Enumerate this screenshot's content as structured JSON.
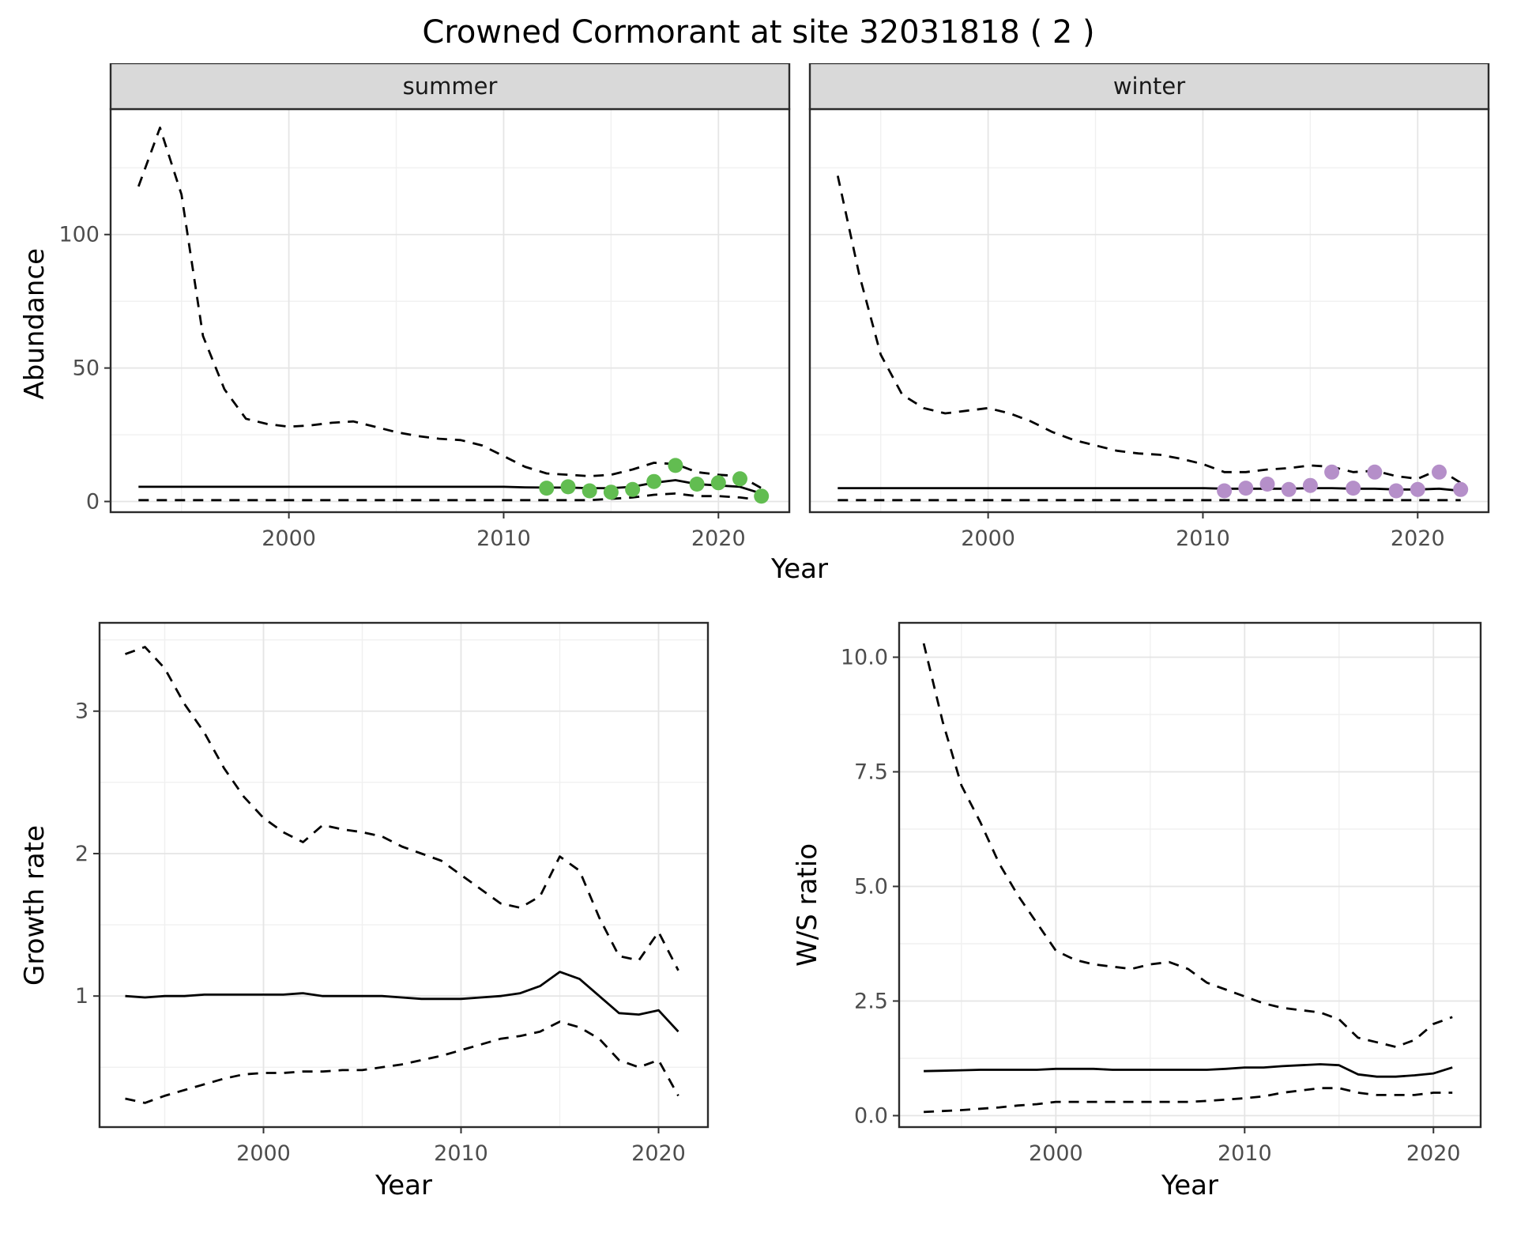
{
  "title": "Crowned Cormorant at site 32031818 ( 2 )",
  "theme": {
    "panel_bg": "#ffffff",
    "strip_bg": "#d9d9d9",
    "panel_border": "#2b2b2b",
    "grid_major": "#e5e5e5",
    "grid_minor": "#f0f0f0",
    "line_color": "#000000",
    "tick_color": "#333333",
    "axis_text": "#4d4d4d",
    "summer_point_color": "#62bd51",
    "winter_point_color": "#b58fc9"
  },
  "chart_data": [
    {
      "id": "abundance",
      "type": "line",
      "title": "Abundance by season (faceted)",
      "xlabel": "Year",
      "ylabel": "Abundance",
      "xlim": [
        1991.7,
        2023.3
      ],
      "ylim": [
        -4,
        147
      ],
      "xticks": [
        2000,
        2010,
        2020
      ],
      "xtick_labels": [
        "2000",
        "2010",
        "2020"
      ],
      "yticks": [
        0,
        50,
        100
      ],
      "ytick_labels": [
        "0",
        "50",
        "100"
      ],
      "xminor": [
        1995,
        2005,
        2015
      ],
      "yminor": [
        25,
        75,
        125
      ],
      "grid": "on",
      "legend": "none",
      "facets": [
        {
          "label": "summer",
          "x": [
            1993,
            1994,
            1995,
            1996,
            1997,
            1998,
            1999,
            2000,
            2001,
            2002,
            2003,
            2004,
            2005,
            2006,
            2007,
            2008,
            2009,
            2010,
            2011,
            2012,
            2013,
            2014,
            2015,
            2016,
            2017,
            2018,
            2019,
            2020,
            2021,
            2022
          ],
          "series": [
            {
              "name": "upper_ci",
              "style": "dashed",
              "values": [
                118,
                140,
                115,
                62,
                42,
                31,
                29,
                28,
                28.5,
                29.5,
                30,
                28,
                26,
                24.5,
                23.5,
                23,
                21,
                17,
                13,
                10.5,
                10,
                9.5,
                10,
                12,
                14.5,
                14,
                11,
                10,
                9.5,
                5
              ]
            },
            {
              "name": "median",
              "style": "solid",
              "values": [
                5.5,
                5.5,
                5.5,
                5.5,
                5.5,
                5.5,
                5.5,
                5.5,
                5.5,
                5.5,
                5.5,
                5.5,
                5.5,
                5.5,
                5.5,
                5.5,
                5.5,
                5.5,
                5.3,
                5.2,
                5.2,
                5,
                5,
                5.5,
                7,
                8,
                6.5,
                6,
                5.5,
                3
              ]
            },
            {
              "name": "lower_ci",
              "style": "dashed",
              "values": [
                0.5,
                0.5,
                0.5,
                0.5,
                0.5,
                0.5,
                0.5,
                0.5,
                0.5,
                0.5,
                0.5,
                0.5,
                0.5,
                0.5,
                0.5,
                0.5,
                0.5,
                0.5,
                0.5,
                0.5,
                0.5,
                0.5,
                1,
                1.5,
                2.5,
                3,
                2,
                2,
                1.5,
                0.5
              ]
            }
          ],
          "points": {
            "name": "observed_counts",
            "color": "#62bd51",
            "x": [
              2012,
              2013,
              2014,
              2015,
              2016,
              2017,
              2018,
              2019,
              2020,
              2021,
              2022
            ],
            "y": [
              5,
              5.5,
              4,
              3.5,
              4.5,
              7.5,
              13.5,
              6.5,
              7,
              8.5,
              2
            ]
          }
        },
        {
          "label": "winter",
          "x": [
            1993,
            1994,
            1995,
            1996,
            1997,
            1998,
            1999,
            2000,
            2001,
            2002,
            2003,
            2004,
            2005,
            2006,
            2007,
            2008,
            2009,
            2010,
            2011,
            2012,
            2013,
            2014,
            2015,
            2016,
            2017,
            2018,
            2019,
            2020,
            2021,
            2022
          ],
          "series": [
            {
              "name": "upper_ci",
              "style": "dashed",
              "values": [
                122,
                85,
                55,
                40,
                35,
                33,
                34,
                35,
                33,
                30,
                26,
                23,
                21,
                19,
                18,
                17.5,
                16,
                14,
                11,
                11,
                12,
                12.5,
                13.5,
                13,
                11,
                11.5,
                9.5,
                8.5,
                12,
                7
              ]
            },
            {
              "name": "median",
              "style": "solid",
              "values": [
                5,
                5,
                5,
                5,
                5,
                5,
                5,
                5,
                5,
                5,
                5,
                5,
                5,
                5,
                5,
                5,
                5,
                5,
                4.8,
                4.8,
                4.8,
                4.8,
                5,
                5,
                4.8,
                4.8,
                4.5,
                4.5,
                4.8,
                4
              ]
            },
            {
              "name": "lower_ci",
              "style": "dashed",
              "values": [
                0.5,
                0.5,
                0.5,
                0.5,
                0.5,
                0.5,
                0.5,
                0.5,
                0.5,
                0.5,
                0.5,
                0.5,
                0.5,
                0.5,
                0.5,
                0.5,
                0.5,
                0.5,
                0.5,
                0.5,
                0.5,
                0.5,
                0.5,
                0.5,
                0.5,
                0.5,
                0.5,
                0.5,
                0.5,
                0.5
              ]
            }
          ],
          "points": {
            "name": "observed_counts",
            "color": "#b58fc9",
            "x": [
              2011,
              2012,
              2013,
              2014,
              2015,
              2016,
              2017,
              2018,
              2019,
              2020,
              2021,
              2022
            ],
            "y": [
              4,
              5,
              6.5,
              4.5,
              6,
              11,
              5,
              11,
              4,
              4.5,
              11,
              4.5
            ]
          }
        }
      ]
    },
    {
      "id": "growth_rate",
      "type": "line",
      "title": "Growth rate",
      "xlabel": "Year",
      "ylabel": "Growth rate",
      "xlim": [
        1991.7,
        2022.5
      ],
      "ylim": [
        0.08,
        3.62
      ],
      "xticks": [
        2000,
        2010,
        2020
      ],
      "xtick_labels": [
        "2000",
        "2010",
        "2020"
      ],
      "yticks": [
        1,
        2,
        3
      ],
      "ytick_labels": [
        "1",
        "2",
        "3"
      ],
      "xminor": [
        1995,
        2005,
        2015
      ],
      "yminor": [
        0.5,
        1.5,
        2.5,
        3.5
      ],
      "grid": "on",
      "legend": "none",
      "x": [
        1993,
        1994,
        1995,
        1996,
        1997,
        1998,
        1999,
        2000,
        2001,
        2002,
        2003,
        2004,
        2005,
        2006,
        2007,
        2008,
        2009,
        2010,
        2011,
        2012,
        2013,
        2014,
        2015,
        2016,
        2017,
        2018,
        2019,
        2020,
        2021
      ],
      "series": [
        {
          "name": "upper_ci",
          "style": "dashed",
          "values": [
            3.4,
            3.45,
            3.3,
            3.05,
            2.85,
            2.6,
            2.4,
            2.25,
            2.15,
            2.08,
            2.2,
            2.17,
            2.15,
            2.12,
            2.05,
            2.0,
            1.95,
            1.85,
            1.75,
            1.65,
            1.62,
            1.7,
            1.98,
            1.88,
            1.55,
            1.28,
            1.25,
            1.45,
            1.18
          ]
        },
        {
          "name": "median",
          "style": "solid",
          "values": [
            1.0,
            0.99,
            1.0,
            1.0,
            1.01,
            1.01,
            1.01,
            1.01,
            1.01,
            1.02,
            1.0,
            1.0,
            1.0,
            1.0,
            0.99,
            0.98,
            0.98,
            0.98,
            0.99,
            1.0,
            1.02,
            1.07,
            1.17,
            1.12,
            1.0,
            0.88,
            0.87,
            0.9,
            0.75
          ]
        },
        {
          "name": "lower_ci",
          "style": "dashed",
          "values": [
            0.28,
            0.25,
            0.3,
            0.34,
            0.38,
            0.42,
            0.45,
            0.46,
            0.46,
            0.47,
            0.47,
            0.48,
            0.48,
            0.5,
            0.52,
            0.55,
            0.58,
            0.62,
            0.66,
            0.7,
            0.72,
            0.75,
            0.82,
            0.78,
            0.7,
            0.55,
            0.5,
            0.55,
            0.3
          ]
        }
      ]
    },
    {
      "id": "ws_ratio",
      "type": "line",
      "title": "Winter/Summer ratio",
      "xlabel": "Year",
      "ylabel": "W/S ratio",
      "xlim": [
        1991.7,
        2022.5
      ],
      "ylim": [
        -0.25,
        10.75
      ],
      "xticks": [
        2000,
        2010,
        2020
      ],
      "xtick_labels": [
        "2000",
        "2010",
        "2020"
      ],
      "yticks": [
        0,
        2.5,
        5,
        7.5,
        10
      ],
      "ytick_labels": [
        "0.0",
        "2.5",
        "5.0",
        "7.5",
        "10.0"
      ],
      "xminor": [
        1995,
        2005,
        2015
      ],
      "yminor": [
        1.25,
        3.75,
        6.25,
        8.75
      ],
      "grid": "on",
      "legend": "none",
      "x": [
        1993,
        1994,
        1995,
        1996,
        1997,
        1998,
        1999,
        2000,
        2001,
        2002,
        2003,
        2004,
        2005,
        2006,
        2007,
        2008,
        2009,
        2010,
        2011,
        2012,
        2013,
        2014,
        2015,
        2016,
        2017,
        2018,
        2019,
        2020,
        2021
      ],
      "series": [
        {
          "name": "upper_ci",
          "style": "dashed",
          "values": [
            10.3,
            8.6,
            7.2,
            6.4,
            5.5,
            4.8,
            4.2,
            3.6,
            3.4,
            3.3,
            3.25,
            3.2,
            3.3,
            3.35,
            3.2,
            2.9,
            2.75,
            2.6,
            2.45,
            2.35,
            2.3,
            2.25,
            2.1,
            1.7,
            1.6,
            1.5,
            1.65,
            2.0,
            2.15
          ]
        },
        {
          "name": "median",
          "style": "solid",
          "values": [
            0.97,
            0.98,
            0.99,
            1.0,
            1.0,
            1.0,
            1.0,
            1.02,
            1.02,
            1.02,
            1.0,
            1.0,
            1.0,
            1.0,
            1.0,
            1.0,
            1.02,
            1.05,
            1.05,
            1.08,
            1.1,
            1.12,
            1.1,
            0.9,
            0.85,
            0.85,
            0.88,
            0.92,
            1.05
          ]
        },
        {
          "name": "lower_ci",
          "style": "dashed",
          "values": [
            0.08,
            0.1,
            0.12,
            0.15,
            0.18,
            0.22,
            0.25,
            0.3,
            0.3,
            0.3,
            0.3,
            0.3,
            0.3,
            0.3,
            0.3,
            0.32,
            0.35,
            0.38,
            0.42,
            0.5,
            0.55,
            0.6,
            0.6,
            0.5,
            0.45,
            0.45,
            0.45,
            0.5,
            0.5
          ]
        }
      ]
    }
  ]
}
